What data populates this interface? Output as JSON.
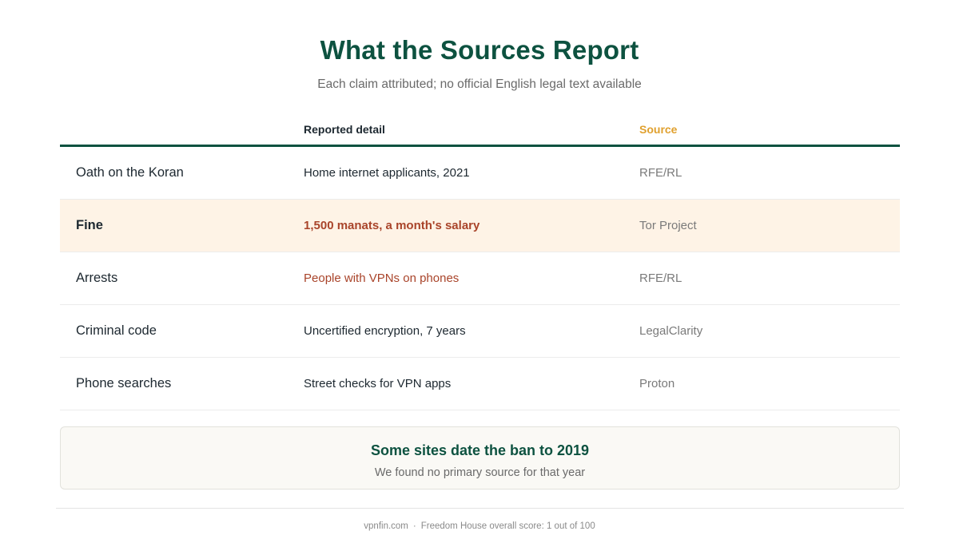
{
  "header": {
    "title": "What the Sources Report",
    "subtitle": "Each claim attributed; no official English legal text available"
  },
  "table": {
    "columns": [
      "",
      "Reported detail",
      "Source"
    ],
    "rows": [
      {
        "topic": "Oath on the Koran",
        "detail": "Home internet applicants, 2021",
        "source": "RFE/RL"
      },
      {
        "topic": "Fine",
        "detail": "1,500 manats, a month's salary",
        "source": "Tor Project"
      },
      {
        "topic": "Arrests",
        "detail": "People with VPNs on phones",
        "source": "RFE/RL"
      },
      {
        "topic": "Criminal code",
        "detail": "Uncertified encryption, 7 years",
        "source": "LegalClarity"
      },
      {
        "topic": "Phone searches",
        "detail": "Street checks for VPN apps",
        "source": "Proton"
      }
    ]
  },
  "note": {
    "title": "Some sites date the ban to 2019",
    "text": "We found no primary source for that year"
  },
  "footer": {
    "site": "vpnfin.com",
    "separator": "·",
    "text": "Freedom House overall score: 1 out of 100"
  },
  "colors": {
    "brand_green": "#0d5240",
    "source_header": "#e0a02e",
    "highlight_bg": "#fef3e6",
    "accent_red": "#a9442a"
  }
}
